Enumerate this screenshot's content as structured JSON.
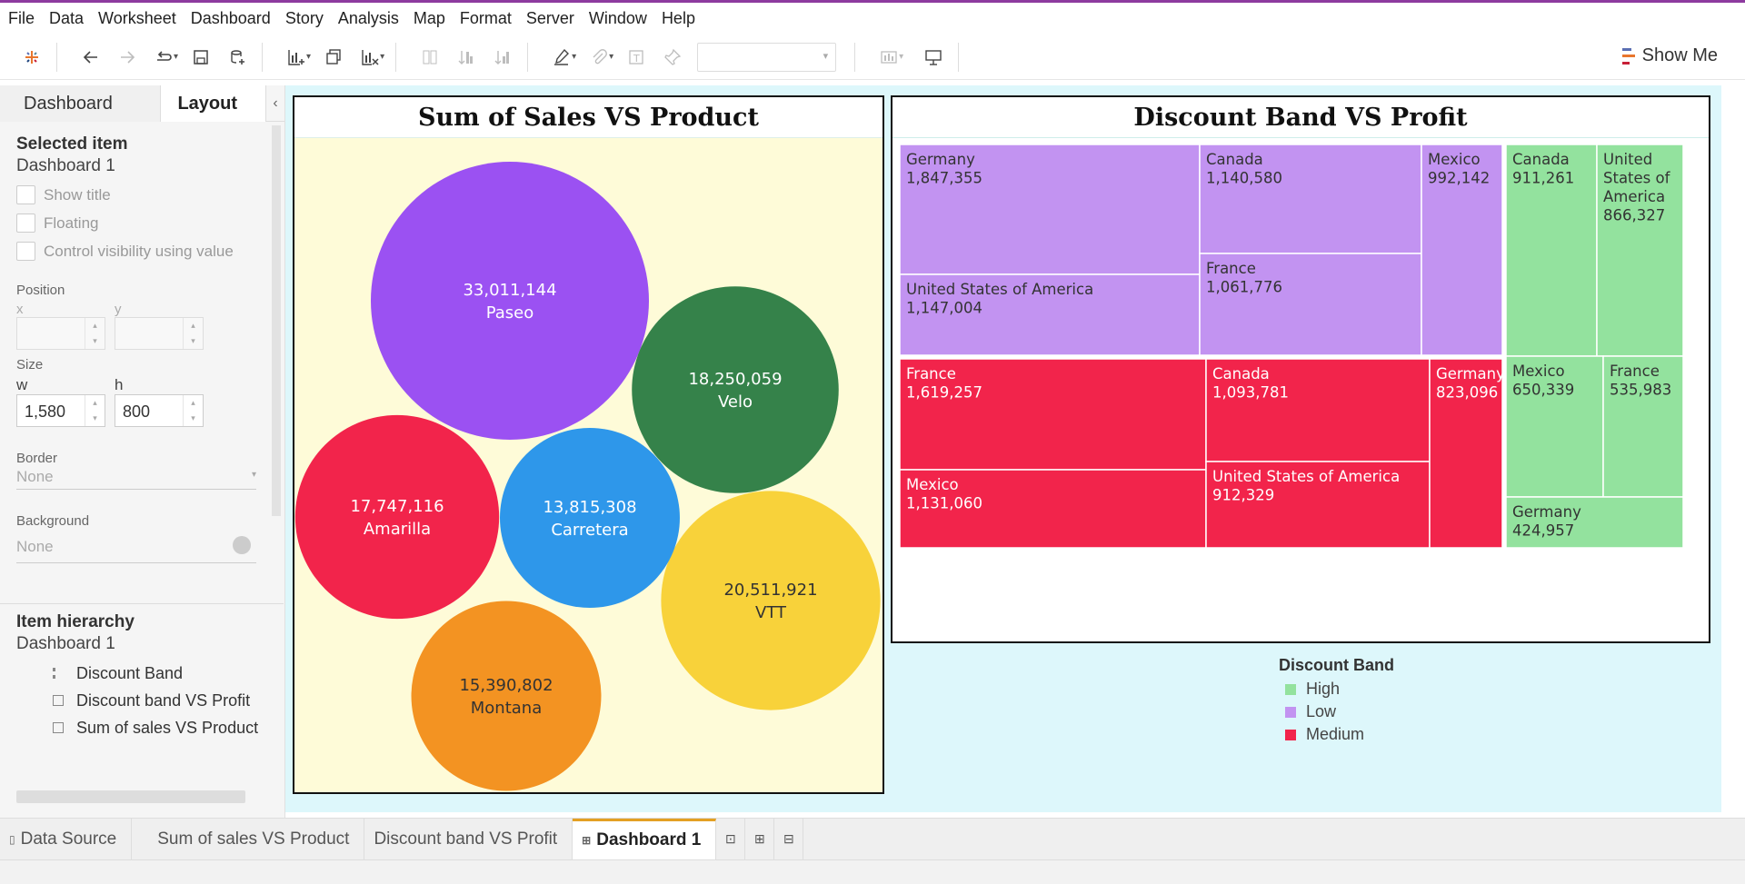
{
  "menu": [
    "File",
    "Data",
    "Worksheet",
    "Dashboard",
    "Story",
    "Analysis",
    "Map",
    "Format",
    "Server",
    "Window",
    "Help"
  ],
  "toolbar": {
    "show_me": "Show Me",
    "icons": [
      "tableau-logo-icon",
      "undo-icon",
      "redo-icon",
      "replay-icon",
      "save-icon",
      "new-datasource-icon",
      "new-worksheet-icon",
      "duplicate-icon",
      "clear-sheet-icon",
      "swap-icon",
      "sort-ascending-icon",
      "sort-descending-icon",
      "highlight-icon",
      "group-icon",
      "label-icon",
      "pin-icon",
      "fit-dropdown",
      "show-cards-icon",
      "presentation-icon"
    ]
  },
  "left_panel": {
    "tabs": [
      "Dashboard",
      "Layout"
    ],
    "active_tab": "Layout",
    "selected_item": {
      "title": "Selected item",
      "value": "Dashboard 1"
    },
    "checkboxes": [
      "Show title",
      "Floating",
      "Control visibility using value"
    ],
    "position": {
      "label": "Position",
      "x_label": "x",
      "y_label": "y",
      "x": "",
      "y": ""
    },
    "size": {
      "label": "Size",
      "w_label": "w",
      "h_label": "h",
      "w": "1,580",
      "h": "800"
    },
    "border": {
      "label": "Border",
      "value": "None"
    },
    "background": {
      "label": "Background",
      "value": "None"
    },
    "hierarchy": {
      "title": "Item hierarchy",
      "root": "Dashboard 1",
      "items": [
        "Discount Band",
        "Discount band VS Profit",
        "Sum of sales VS Product"
      ]
    }
  },
  "dashboard": {
    "bubble_chart": {
      "title": "Sum of Sales VS Product",
      "background": "#fefbd8"
    },
    "treemap": {
      "title": "Discount Band VS Profit"
    },
    "legend": {
      "title": "Discount Band",
      "items": [
        {
          "label": "High",
          "color": "#93e29e"
        },
        {
          "label": "Low",
          "color": "#c293f1"
        },
        {
          "label": "Medium",
          "color": "#f2244b"
        }
      ]
    }
  },
  "chart_data": [
    {
      "type": "bubble",
      "title": "Sum of Sales VS Product",
      "series": [
        {
          "name": "Paseo",
          "value": 33011144,
          "label": "33,011,144",
          "color": "#9b51f2"
        },
        {
          "name": "VTT",
          "value": 20511921,
          "label": "20,511,921",
          "color": "#f8d23a"
        },
        {
          "name": "Velo",
          "value": 18250059,
          "label": "18,250,059",
          "color": "#35824a"
        },
        {
          "name": "Amarilla",
          "value": 17747116,
          "label": "17,747,116",
          "color": "#f2244b"
        },
        {
          "name": "Montana",
          "value": 15390802,
          "label": "15,390,802",
          "color": "#f39322"
        },
        {
          "name": "Carretera",
          "value": 13815308,
          "label": "13,815,308",
          "color": "#2e97ea"
        }
      ]
    },
    {
      "type": "treemap",
      "title": "Discount Band VS Profit",
      "groups": [
        {
          "name": "Low",
          "color": "#c293f1",
          "items": [
            {
              "name": "Germany",
              "value": 1847355,
              "label": "1,847,355"
            },
            {
              "name": "United States of America",
              "value": 1147004,
              "label": "1,147,004"
            },
            {
              "name": "Canada",
              "value": 1140580,
              "label": "1,140,580"
            },
            {
              "name": "France",
              "value": 1061776,
              "label": "1,061,776"
            },
            {
              "name": "Mexico",
              "value": 992142,
              "label": "992,142"
            }
          ]
        },
        {
          "name": "Medium",
          "color": "#f2244b",
          "items": [
            {
              "name": "France",
              "value": 1619257,
              "label": "1,619,257"
            },
            {
              "name": "Mexico",
              "value": 1131060,
              "label": "1,131,060"
            },
            {
              "name": "Canada",
              "value": 1093781,
              "label": "1,093,781"
            },
            {
              "name": "United States of America",
              "value": 912329,
              "label": "912,329"
            },
            {
              "name": "Germany",
              "value": 823096,
              "label": "823,096"
            }
          ]
        },
        {
          "name": "High",
          "color": "#93e29e",
          "items": [
            {
              "name": "Canada",
              "value": 911261,
              "label": "911,261"
            },
            {
              "name": "United States of America",
              "value": 866327,
              "label": "866,327"
            },
            {
              "name": "Mexico",
              "value": 650339,
              "label": "650,339"
            },
            {
              "name": "France",
              "value": 535983,
              "label": "535,983"
            },
            {
              "name": "Germany",
              "value": 424957,
              "label": "424,957"
            }
          ]
        }
      ]
    }
  ],
  "bottom_tabs": [
    {
      "label": "Data Source",
      "icon": "datasource-icon",
      "active": false
    },
    {
      "label": "Sum of sales VS Product",
      "icon": "",
      "active": false
    },
    {
      "label": "Discount band VS Profit",
      "icon": "",
      "active": false
    },
    {
      "label": "Dashboard 1",
      "icon": "dashboard-icon",
      "active": true
    }
  ],
  "bottom_icons": [
    "new-worksheet-tab-icon",
    "new-dashboard-tab-icon",
    "new-story-tab-icon"
  ]
}
